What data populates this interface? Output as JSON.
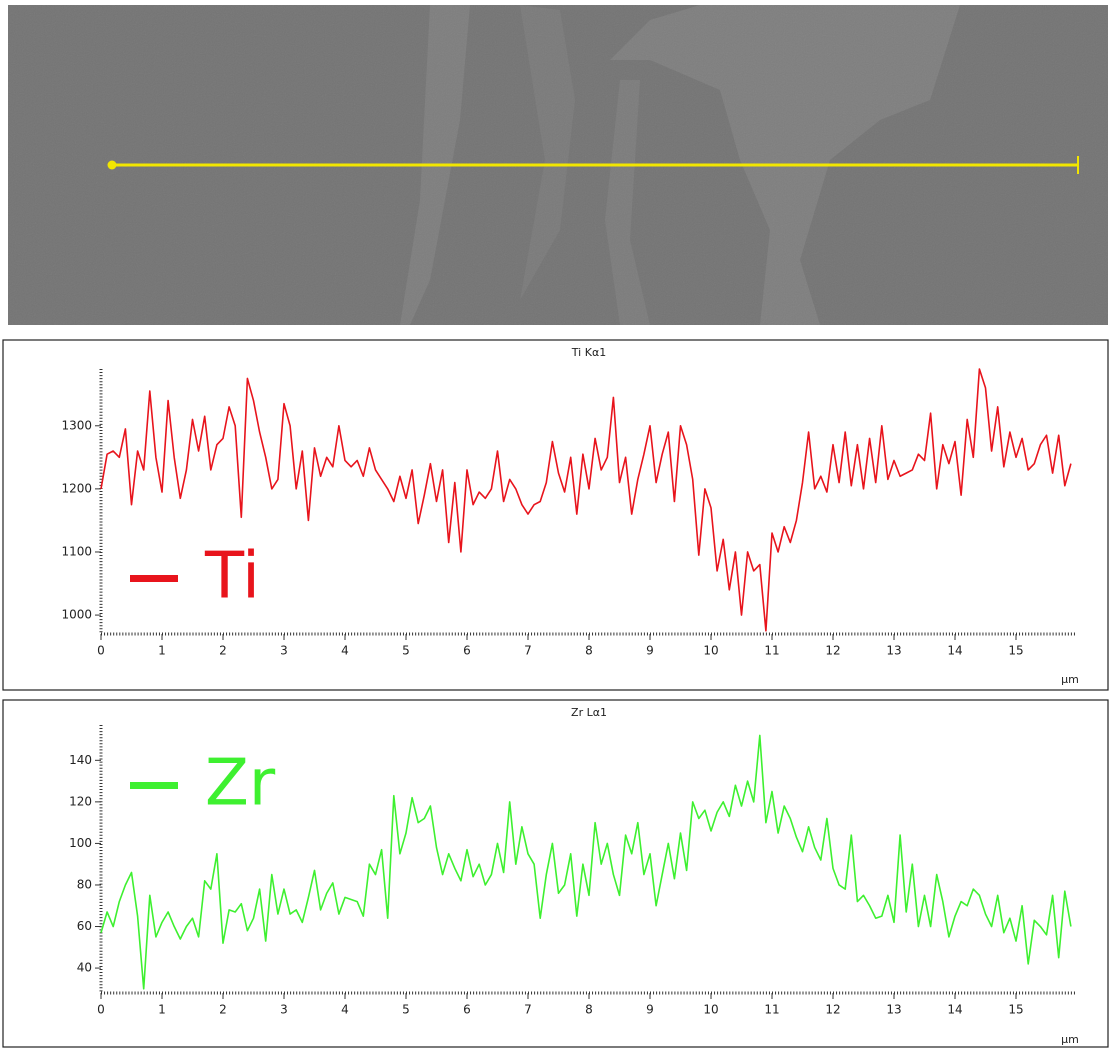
{
  "chart_data": [
    {
      "type": "line",
      "title": "Ti Kα1",
      "x_label": "µm",
      "xlim": [
        0,
        16
      ],
      "xticks": [
        0,
        1,
        2,
        3,
        4,
        5,
        6,
        7,
        8,
        9,
        10,
        11,
        12,
        13,
        14,
        15
      ],
      "ylim": [
        970,
        1390
      ],
      "yticks": [
        1000,
        1100,
        1200,
        1300
      ],
      "x": [
        0,
        0.1,
        0.2,
        0.3,
        0.4,
        0.5,
        0.6,
        0.7,
        0.8,
        0.9,
        1,
        1.1,
        1.2,
        1.3,
        1.4,
        1.5,
        1.6,
        1.7,
        1.8,
        1.9,
        2,
        2.1,
        2.2,
        2.3,
        2.4,
        2.5,
        2.6,
        2.7,
        2.8,
        2.9,
        3,
        3.1,
        3.2,
        3.3,
        3.4,
        3.5,
        3.6,
        3.7,
        3.8,
        3.9,
        4,
        4.1,
        4.2,
        4.3,
        4.4,
        4.5,
        4.6,
        4.7,
        4.8,
        4.9,
        5,
        5.1,
        5.2,
        5.3,
        5.4,
        5.5,
        5.6,
        5.7,
        5.8,
        5.9,
        6,
        6.1,
        6.2,
        6.3,
        6.4,
        6.5,
        6.6,
        6.7,
        6.8,
        6.9,
        7,
        7.1,
        7.2,
        7.3,
        7.4,
        7.5,
        7.6,
        7.7,
        7.8,
        7.9,
        8,
        8.1,
        8.2,
        8.3,
        8.4,
        8.5,
        8.6,
        8.7,
        8.8,
        8.9,
        9,
        9.1,
        9.2,
        9.3,
        9.4,
        9.5,
        9.6,
        9.7,
        9.8,
        9.9,
        10,
        10.1,
        10.2,
        10.3,
        10.4,
        10.5,
        10.6,
        10.7,
        10.8,
        10.9,
        11,
        11.1,
        11.2,
        11.3,
        11.4,
        11.5,
        11.6,
        11.7,
        11.8,
        11.9,
        12,
        12.1,
        12.2,
        12.3,
        12.4,
        12.5,
        12.6,
        12.7,
        12.8,
        12.9,
        13,
        13.1,
        13.2,
        13.3,
        13.4,
        13.5,
        13.6,
        13.7,
        13.8,
        13.9,
        14,
        14.1,
        14.2,
        14.3,
        14.4,
        14.5,
        14.6,
        14.7,
        14.8,
        14.9,
        15,
        15.1,
        15.2,
        15.3,
        15.4,
        15.5,
        15.6,
        15.7,
        15.8,
        15.9
      ],
      "series": [
        {
          "name": "Ti",
          "color": "#e8141c",
          "values": [
            1200,
            1255,
            1260,
            1250,
            1295,
            1175,
            1260,
            1230,
            1355,
            1250,
            1195,
            1340,
            1250,
            1185,
            1230,
            1310,
            1260,
            1315,
            1230,
            1270,
            1280,
            1330,
            1300,
            1155,
            1375,
            1340,
            1290,
            1250,
            1200,
            1215,
            1335,
            1300,
            1200,
            1260,
            1150,
            1265,
            1220,
            1250,
            1235,
            1300,
            1245,
            1235,
            1245,
            1220,
            1265,
            1230,
            1215,
            1200,
            1180,
            1220,
            1185,
            1230,
            1145,
            1190,
            1240,
            1180,
            1230,
            1115,
            1210,
            1100,
            1230,
            1175,
            1195,
            1185,
            1200,
            1260,
            1180,
            1215,
            1200,
            1175,
            1160,
            1175,
            1180,
            1210,
            1275,
            1225,
            1195,
            1250,
            1160,
            1255,
            1200,
            1280,
            1230,
            1250,
            1345,
            1210,
            1250,
            1160,
            1215,
            1255,
            1300,
            1210,
            1255,
            1290,
            1180,
            1300,
            1270,
            1215,
            1095,
            1200,
            1170,
            1070,
            1120,
            1040,
            1100,
            1000,
            1100,
            1070,
            1080,
            975,
            1130,
            1100,
            1140,
            1115,
            1150,
            1210,
            1290,
            1200,
            1220,
            1195,
            1270,
            1210,
            1290,
            1205,
            1270,
            1200,
            1280,
            1210,
            1300,
            1215,
            1245,
            1220,
            1225,
            1230,
            1255,
            1245,
            1320,
            1200,
            1270,
            1240,
            1275,
            1190,
            1310,
            1250,
            1390,
            1360,
            1260,
            1330,
            1235,
            1290,
            1250,
            1280,
            1230,
            1240,
            1270,
            1285,
            1225,
            1285,
            1205,
            1240
          ]
        }
      ]
    },
    {
      "type": "line",
      "title": "Zr Lα1",
      "x_label": "µm",
      "xlim": [
        0,
        16
      ],
      "xticks": [
        0,
        1,
        2,
        3,
        4,
        5,
        6,
        7,
        8,
        9,
        10,
        11,
        12,
        13,
        14,
        15
      ],
      "ylim": [
        28,
        157
      ],
      "yticks": [
        40,
        60,
        80,
        100,
        120,
        140
      ],
      "x": [
        0,
        0.1,
        0.2,
        0.3,
        0.4,
        0.5,
        0.6,
        0.7,
        0.8,
        0.9,
        1,
        1.1,
        1.2,
        1.3,
        1.4,
        1.5,
        1.6,
        1.7,
        1.8,
        1.9,
        2,
        2.1,
        2.2,
        2.3,
        2.4,
        2.5,
        2.6,
        2.7,
        2.8,
        2.9,
        3,
        3.1,
        3.2,
        3.3,
        3.4,
        3.5,
        3.6,
        3.7,
        3.8,
        3.9,
        4,
        4.1,
        4.2,
        4.3,
        4.4,
        4.5,
        4.6,
        4.7,
        4.8,
        4.9,
        5,
        5.1,
        5.2,
        5.3,
        5.4,
        5.5,
        5.6,
        5.7,
        5.8,
        5.9,
        6,
        6.1,
        6.2,
        6.3,
        6.4,
        6.5,
        6.6,
        6.7,
        6.8,
        6.9,
        7,
        7.1,
        7.2,
        7.3,
        7.4,
        7.5,
        7.6,
        7.7,
        7.8,
        7.9,
        8,
        8.1,
        8.2,
        8.3,
        8.4,
        8.5,
        8.6,
        8.7,
        8.8,
        8.9,
        9,
        9.1,
        9.2,
        9.3,
        9.4,
        9.5,
        9.6,
        9.7,
        9.8,
        9.9,
        10,
        10.1,
        10.2,
        10.3,
        10.4,
        10.5,
        10.6,
        10.7,
        10.8,
        10.9,
        11,
        11.1,
        11.2,
        11.3,
        11.4,
        11.5,
        11.6,
        11.7,
        11.8,
        11.9,
        12,
        12.1,
        12.2,
        12.3,
        12.4,
        12.5,
        12.6,
        12.7,
        12.8,
        12.9,
        13,
        13.1,
        13.2,
        13.3,
        13.4,
        13.5,
        13.6,
        13.7,
        13.8,
        13.9,
        14,
        14.1,
        14.2,
        14.3,
        14.4,
        14.5,
        14.6,
        14.7,
        14.8,
        14.9,
        15,
        15.1,
        15.2,
        15.3,
        15.4,
        15.5,
        15.6,
        15.7,
        15.8,
        15.9
      ],
      "series": [
        {
          "name": "Zr",
          "color": "#3ef030",
          "values": [
            57,
            67,
            60,
            72,
            80,
            86,
            65,
            30,
            75,
            55,
            62,
            67,
            60,
            54,
            60,
            64,
            55,
            82,
            78,
            95,
            52,
            68,
            67,
            71,
            58,
            64,
            78,
            53,
            85,
            66,
            78,
            66,
            68,
            62,
            74,
            87,
            68,
            76,
            81,
            66,
            74,
            73,
            72,
            65,
            90,
            85,
            97,
            64,
            123,
            95,
            105,
            122,
            110,
            112,
            118,
            98,
            85,
            95,
            88,
            82,
            97,
            84,
            90,
            80,
            85,
            100,
            86,
            120,
            90,
            108,
            95,
            90,
            64,
            85,
            100,
            76,
            80,
            95,
            65,
            90,
            75,
            110,
            90,
            100,
            85,
            75,
            104,
            95,
            110,
            85,
            95,
            70,
            85,
            100,
            83,
            105,
            87,
            120,
            112,
            116,
            106,
            115,
            120,
            113,
            128,
            118,
            130,
            120,
            152,
            110,
            125,
            105,
            118,
            112,
            103,
            96,
            108,
            98,
            92,
            112,
            88,
            80,
            78,
            104,
            72,
            75,
            70,
            64,
            65,
            75,
            62,
            104,
            67,
            90,
            60,
            75,
            60,
            85,
            72,
            55,
            65,
            72,
            70,
            78,
            75,
            66,
            60,
            75,
            57,
            64,
            53,
            70,
            42,
            63,
            60,
            56,
            75,
            45,
            77,
            60
          ]
        }
      ]
    }
  ]
}
